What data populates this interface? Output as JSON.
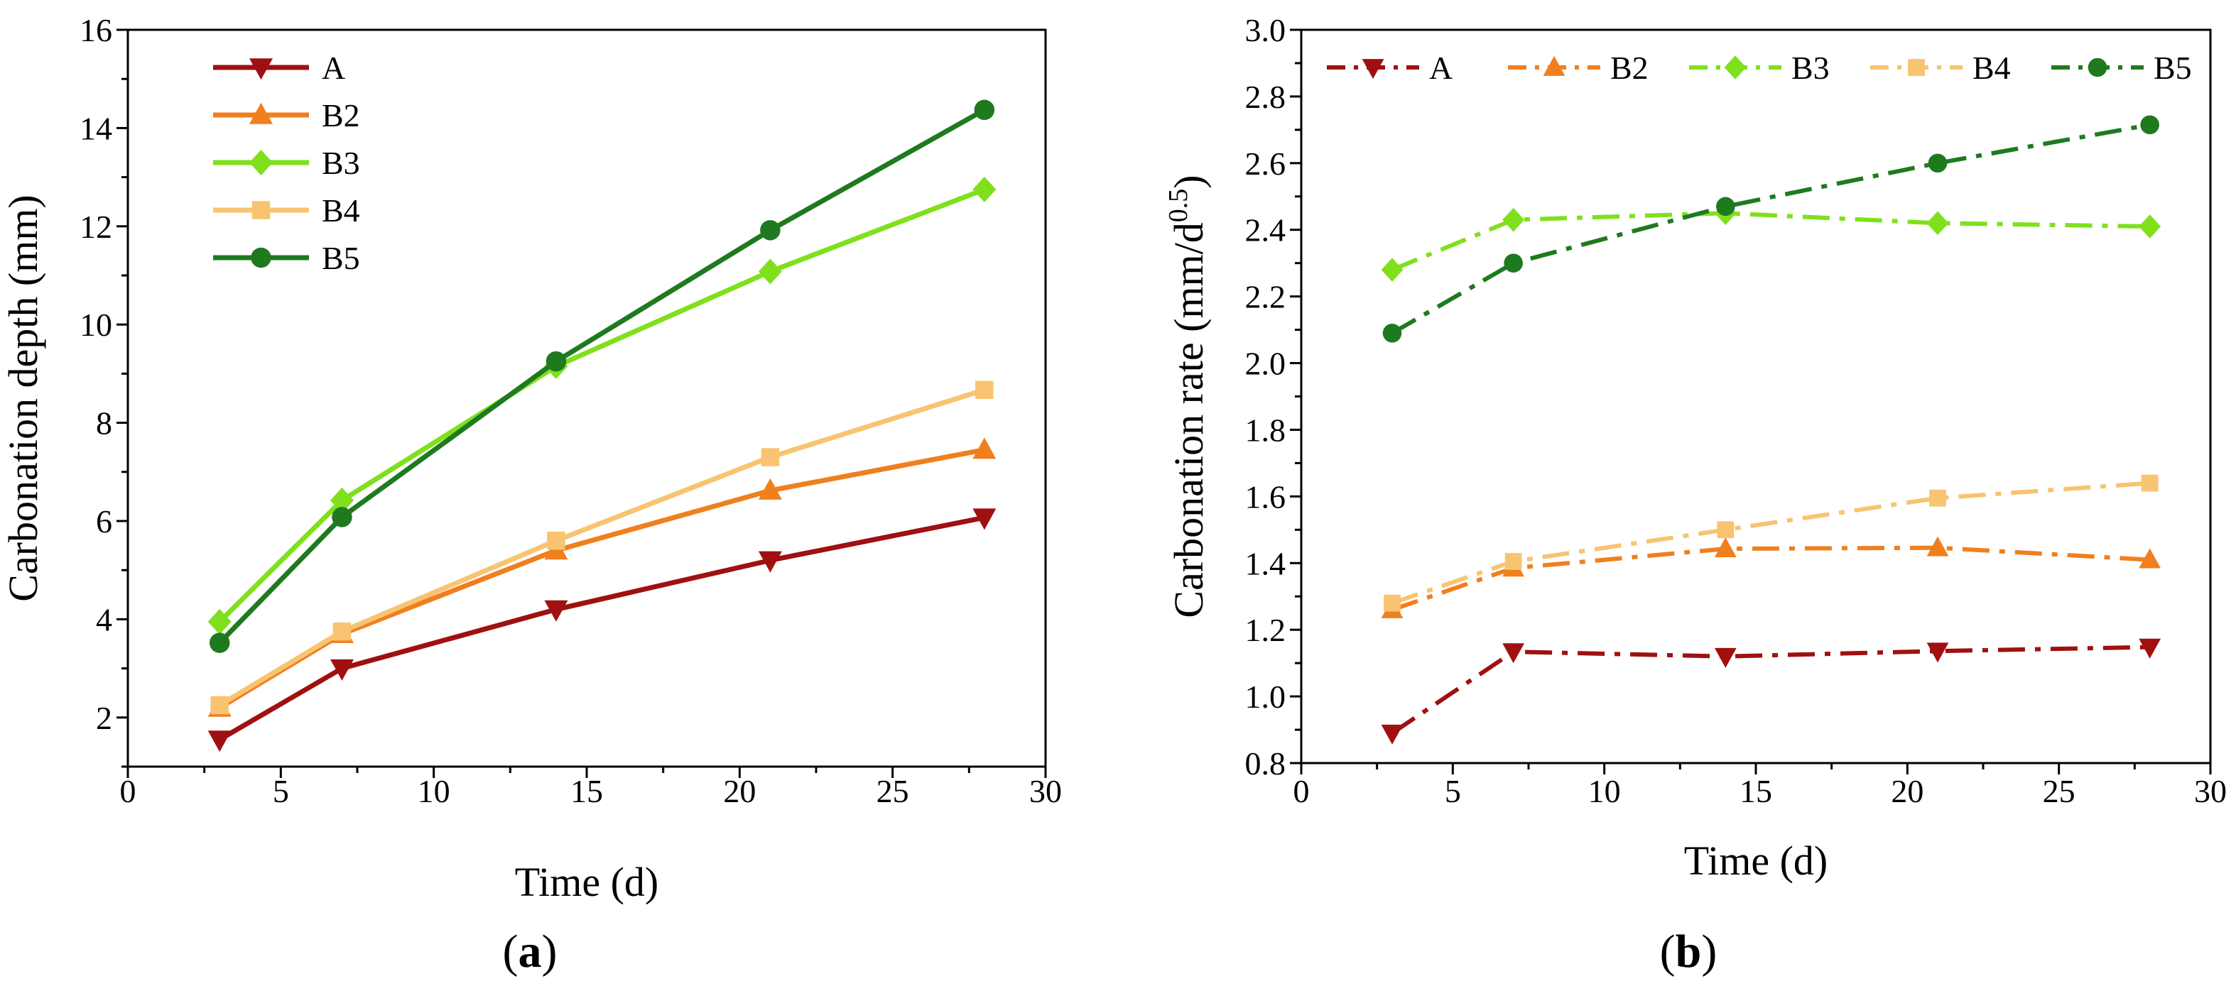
{
  "figure": {
    "panel_a": {
      "open": "(",
      "letter": "a",
      "close": ")"
    },
    "panel_b": {
      "open": "(",
      "letter": "b",
      "close": ")"
    }
  },
  "chart_data": [
    {
      "id": "a",
      "type": "line",
      "title": "",
      "xlabel": "Time (d)",
      "ylabel": "Carbonation depth (mm)",
      "xlim": [
        0,
        30
      ],
      "ylim": [
        1,
        16
      ],
      "xticks": [
        0,
        5,
        10,
        15,
        20,
        25,
        30
      ],
      "yticks": [
        2,
        4,
        6,
        8,
        10,
        12,
        14,
        16
      ],
      "x": [
        3,
        7,
        14,
        21,
        28
      ],
      "line_style": "solid",
      "legend_position": "top-left",
      "series": [
        {
          "name": "A",
          "marker": "triangle-down",
          "color": "#A01010",
          "values": [
            1.55,
            3.0,
            4.2,
            5.2,
            6.07
          ]
        },
        {
          "name": "B2",
          "marker": "triangle-up",
          "color": "#F07F1E",
          "values": [
            2.2,
            3.7,
            5.4,
            6.62,
            7.45
          ]
        },
        {
          "name": "B3",
          "marker": "diamond",
          "color": "#7FE01C",
          "values": [
            3.95,
            6.42,
            9.15,
            11.08,
            12.75
          ]
        },
        {
          "name": "B4",
          "marker": "square",
          "color": "#F8C471",
          "values": [
            2.25,
            3.75,
            5.6,
            7.3,
            8.67
          ]
        },
        {
          "name": "B5",
          "marker": "circle",
          "color": "#1F7A1F",
          "values": [
            3.52,
            6.08,
            9.25,
            11.92,
            14.37
          ]
        }
      ]
    },
    {
      "id": "b",
      "type": "line",
      "title": "",
      "xlabel": "Time (d)",
      "ylabel_prefix": "Carbonation rate (mm/d",
      "ylabel_sup": "0.5",
      "ylabel_suffix": ")",
      "xlim": [
        0,
        30
      ],
      "ylim": [
        0.8,
        3.0
      ],
      "xticks": [
        0,
        5,
        10,
        15,
        20,
        25,
        30
      ],
      "yticks": [
        0.8,
        1.0,
        1.2,
        1.4,
        1.6,
        1.8,
        2.0,
        2.2,
        2.4,
        2.6,
        2.8,
        3.0
      ],
      "x": [
        3,
        7,
        14,
        21,
        28
      ],
      "line_style": "dash-dot",
      "legend_position": "top",
      "series": [
        {
          "name": "A",
          "marker": "triangle-down",
          "color": "#A01010",
          "values": [
            0.89,
            1.134,
            1.12,
            1.136,
            1.148
          ]
        },
        {
          "name": "B2",
          "marker": "triangle-up",
          "color": "#F07F1E",
          "values": [
            1.26,
            1.385,
            1.443,
            1.446,
            1.41
          ]
        },
        {
          "name": "B3",
          "marker": "diamond",
          "color": "#7FE01C",
          "values": [
            2.28,
            2.43,
            2.45,
            2.42,
            2.41
          ]
        },
        {
          "name": "B4",
          "marker": "square",
          "color": "#F8C471",
          "values": [
            1.28,
            1.405,
            1.5,
            1.595,
            1.64
          ]
        },
        {
          "name": "B5",
          "marker": "circle",
          "color": "#1F7A1F",
          "values": [
            2.09,
            2.3,
            2.47,
            2.6,
            2.715
          ]
        }
      ]
    }
  ]
}
